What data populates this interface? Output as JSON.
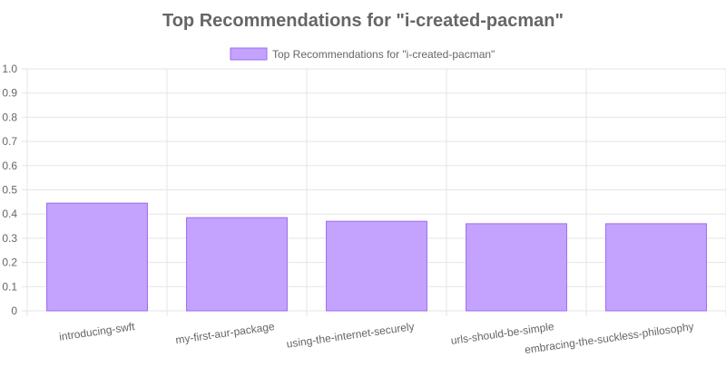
{
  "chart_data": {
    "type": "bar",
    "title": "Top Recommendations for \"i-created-pacman\"",
    "legend": {
      "position": "top",
      "entries": [
        "Top Recommendations for \"i-created-pacman\""
      ]
    },
    "categories": [
      "introducing-swft",
      "my-first-aur-package",
      "using-the-internet-securely",
      "urls-should-be-simple",
      "embracing-the-suckless-philosophy"
    ],
    "series": [
      {
        "name": "Top Recommendations for \"i-created-pacman\"",
        "values": [
          0.445,
          0.385,
          0.37,
          0.36,
          0.36
        ]
      }
    ],
    "ylim": [
      0,
      1
    ],
    "yticks": [
      "0",
      "0.1",
      "0.2",
      "0.3",
      "0.4",
      "0.5",
      "0.6",
      "0.7",
      "0.8",
      "0.9",
      "1.0"
    ],
    "grid": true,
    "colors": {
      "bar_fill": "#c4a3ff",
      "bar_stroke": "#9b6bf0",
      "grid": "#e5e5e5",
      "text": "#666666",
      "title": "#666666"
    }
  }
}
